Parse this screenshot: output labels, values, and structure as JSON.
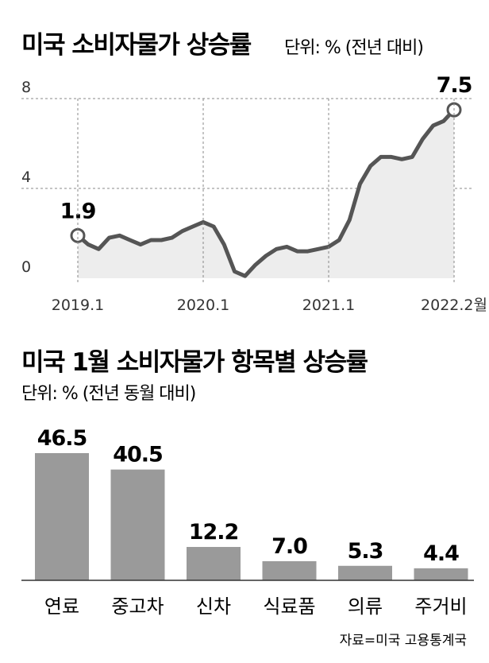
{
  "chart_data": [
    {
      "type": "area",
      "title": "미국 소비자물가 상승률",
      "unit_label": "단위: % (전년 대비)",
      "y_ticks": [
        "8",
        "4",
        "0"
      ],
      "ylim": [
        0,
        8
      ],
      "x_tick_labels": [
        "2019.1",
        "2020.1",
        "2021.1",
        "2022.2월"
      ],
      "x_tick_month_index": [
        0,
        12,
        24,
        36
      ],
      "series": [
        {
          "values": [
            1.9,
            1.5,
            1.3,
            1.8,
            1.9,
            1.7,
            1.5,
            1.7,
            1.7,
            1.8,
            2.1,
            2.3,
            2.5,
            2.3,
            1.5,
            0.3,
            0.1,
            0.6,
            1.0,
            1.3,
            1.4,
            1.2,
            1.2,
            1.3,
            1.4,
            1.7,
            2.6,
            4.2,
            5.0,
            5.4,
            5.4,
            5.3,
            5.4,
            6.2,
            6.8,
            7.0,
            7.5
          ]
        }
      ],
      "annotations": [
        {
          "month_index": 0,
          "value": 1.9,
          "text": "1.9"
        },
        {
          "month_index": 36,
          "value": 7.5,
          "text": "7.5"
        }
      ],
      "grid": true
    },
    {
      "type": "bar",
      "title": "미국 1월 소비자물가 항목별 상승률",
      "unit_label": "단위: % (전년 동월 대비)",
      "categories": [
        "연료",
        "중고차",
        "신차",
        "식료품",
        "의류",
        "주거비"
      ],
      "values": [
        46.5,
        40.5,
        12.2,
        7.0,
        5.3,
        4.4
      ],
      "value_labels": [
        "46.5",
        "40.5",
        "12.2",
        "7.0",
        "5.3",
        "4.4"
      ]
    }
  ],
  "source": "자료=미국 고용통계국",
  "colors": {
    "line": "#555555",
    "area": "#ededed",
    "bar": "#9a9a9a",
    "grid": "#888888"
  }
}
